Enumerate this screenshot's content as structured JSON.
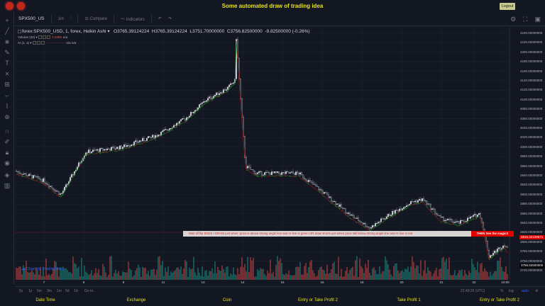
{
  "header": {
    "title": "Some automated draw of trading idea",
    "logout_label": "Logout",
    "window_dots": [
      "record-icon",
      "record-icon"
    ]
  },
  "toolbar": {
    "symbol": "SPX500_US",
    "interval": "1m",
    "compare_label": "Compare",
    "indicators_label": "Indicators"
  },
  "legend": {
    "series": "forex:SPX500_USD, 1, forex, Heikin Ashi",
    "open": "O3765.39124224",
    "high": "H3765.39124224",
    "low": "L3751.70000000",
    "close": "C3756.82500000",
    "change": "-9.82500000 (-0.26%)",
    "volume": "Volume (20)",
    "volume_value": "1.049K",
    "volume_na": "n/a",
    "ai": "AI (1, 1)",
    "ai_na1": "n/a",
    "ai_na2": "n/a"
  },
  "price_axis": [
    "4240.00000000",
    "4220.00000000",
    "4200.00000000",
    "4180.00000000",
    "4160.00000000",
    "4140.00000000",
    "4120.00000000",
    "4100.00000000",
    "4080.00000000",
    "4060.00000000",
    "4040.00000000",
    "4020.00000000",
    "4000.00000000",
    "3980.00000000",
    "3960.00000000",
    "3940.00000000",
    "3920.00000000",
    "3900.00000000",
    "3880.00000000",
    "3860.00000000",
    "3840.00000000",
    "3820.00000000",
    "3800.00000000",
    "3780.00000000",
    "3760.00000000",
    "3740.00000000"
  ],
  "price_tags": {
    "signal": "3816.32109671",
    "current": "3756.82500000"
  },
  "banner": {
    "text": "Wait till flip ENDS !   DRAW just when:  price is above strong angle line and AI line is green        OR        draw shorts just when price still below strong angle line and AI line is red",
    "cta": "THEN See the magic!!"
  },
  "date_axis": [
    "7",
    "8",
    "9",
    "11",
    "13",
    "14",
    "15",
    "16",
    "18",
    "20",
    "21",
    "22",
    "10:00"
  ],
  "range": {
    "buttons": [
      "5y",
      "1y",
      "6m",
      "3m",
      "1m",
      "5d",
      "1d"
    ],
    "goto": "Go to...",
    "time": "21:43:26 (UTC)",
    "percent": "%",
    "log": "log",
    "auto": "auto"
  },
  "watermark": "Chart by TradingView",
  "footer": [
    "Date Time",
    "Exchange",
    "Coin",
    "Entry or Take Profit 2",
    "Take Profit 1",
    "Entry or Take Profit 2"
  ],
  "colors": {
    "up": "#26a69a",
    "down": "#ef5350",
    "accent": "#e8e31a",
    "signal": "#e00000"
  },
  "price_path": [
    [
      0,
      3950
    ],
    [
      40,
      3930
    ],
    [
      65,
      3900
    ],
    [
      100,
      3990
    ],
    [
      150,
      4000
    ],
    [
      200,
      4025
    ],
    [
      240,
      4060
    ],
    [
      270,
      4100
    ],
    [
      300,
      4125
    ],
    [
      310,
      4140
    ],
    [
      312,
      4230
    ],
    [
      318,
      4100
    ],
    [
      325,
      3960
    ],
    [
      340,
      3945
    ],
    [
      400,
      3945
    ],
    [
      430,
      3910
    ],
    [
      470,
      3860
    ],
    [
      500,
      3830
    ],
    [
      530,
      3860
    ],
    [
      560,
      3885
    ],
    [
      575,
      3890
    ],
    [
      600,
      3850
    ],
    [
      625,
      3840
    ],
    [
      655,
      3860
    ],
    [
      660,
      3830
    ],
    [
      668,
      3770
    ],
    [
      690,
      3795
    ],
    [
      700,
      3770
    ],
    [
      715,
      3757
    ]
  ]
}
